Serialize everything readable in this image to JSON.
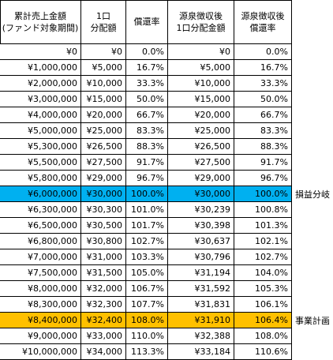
{
  "table": {
    "header": [
      [
        "累計売上金額",
        "(ファンド対象期間)"
      ],
      [
        "1口",
        "分配額"
      ],
      [
        "償還率"
      ],
      [
        "源泉徴収後",
        "1口分配金額"
      ],
      [
        "源泉徴収後",
        "償還率"
      ]
    ],
    "rows": [
      {
        "cells": [
          "¥0",
          "¥0",
          "0.0%",
          "¥0",
          "0.0%"
        ]
      },
      {
        "cells": [
          "¥1,000,000",
          "¥5,000",
          "16.7%",
          "¥5,000",
          "16.7%"
        ]
      },
      {
        "cells": [
          "¥2,000,000",
          "¥10,000",
          "33.3%",
          "¥10,000",
          "33.3%"
        ]
      },
      {
        "cells": [
          "¥3,000,000",
          "¥15,000",
          "50.0%",
          "¥15,000",
          "50.0%"
        ]
      },
      {
        "cells": [
          "¥4,000,000",
          "¥20,000",
          "66.7%",
          "¥20,000",
          "66.7%"
        ]
      },
      {
        "cells": [
          "¥5,000,000",
          "¥25,000",
          "83.3%",
          "¥25,000",
          "83.3%"
        ]
      },
      {
        "cells": [
          "¥5,300,000",
          "¥26,500",
          "88.3%",
          "¥26,500",
          "88.3%"
        ]
      },
      {
        "cells": [
          "¥5,500,000",
          "¥27,500",
          "91.7%",
          "¥27,500",
          "91.7%"
        ]
      },
      {
        "cells": [
          "¥5,800,000",
          "¥29,000",
          "96.7%",
          "¥29,000",
          "96.7%"
        ]
      },
      {
        "cells": [
          "¥6,000,000",
          "¥30,000",
          "100.0%",
          "¥30,000",
          "100.0%"
        ],
        "note": "損益分岐",
        "highlight": "#00b0f0"
      },
      {
        "cells": [
          "¥6,300,000",
          "¥30,300",
          "101.0%",
          "¥30,239",
          "100.8%"
        ]
      },
      {
        "cells": [
          "¥6,500,000",
          "¥30,500",
          "101.7%",
          "¥30,398",
          "101.3%"
        ]
      },
      {
        "cells": [
          "¥6,800,000",
          "¥30,800",
          "102.7%",
          "¥30,637",
          "102.1%"
        ]
      },
      {
        "cells": [
          "¥7,000,000",
          "¥31,000",
          "103.3%",
          "¥30,796",
          "102.7%"
        ]
      },
      {
        "cells": [
          "¥7,500,000",
          "¥31,500",
          "105.0%",
          "¥31,194",
          "104.0%"
        ]
      },
      {
        "cells": [
          "¥8,000,000",
          "¥32,000",
          "106.7%",
          "¥31,592",
          "105.3%"
        ]
      },
      {
        "cells": [
          "¥8,300,000",
          "¥32,300",
          "107.7%",
          "¥31,831",
          "106.1%"
        ]
      },
      {
        "cells": [
          "¥8,400,000",
          "¥32,400",
          "108.0%",
          "¥31,910",
          "106.4%"
        ],
        "note": "事業計画",
        "highlight": "#ffc000"
      },
      {
        "cells": [
          "¥9,000,000",
          "¥33,000",
          "110.0%",
          "¥32,388",
          "108.0%"
        ]
      },
      {
        "cells": [
          "¥10,000,000",
          "¥34,000",
          "113.3%",
          "¥33,184",
          "110.6%"
        ]
      }
    ]
  }
}
